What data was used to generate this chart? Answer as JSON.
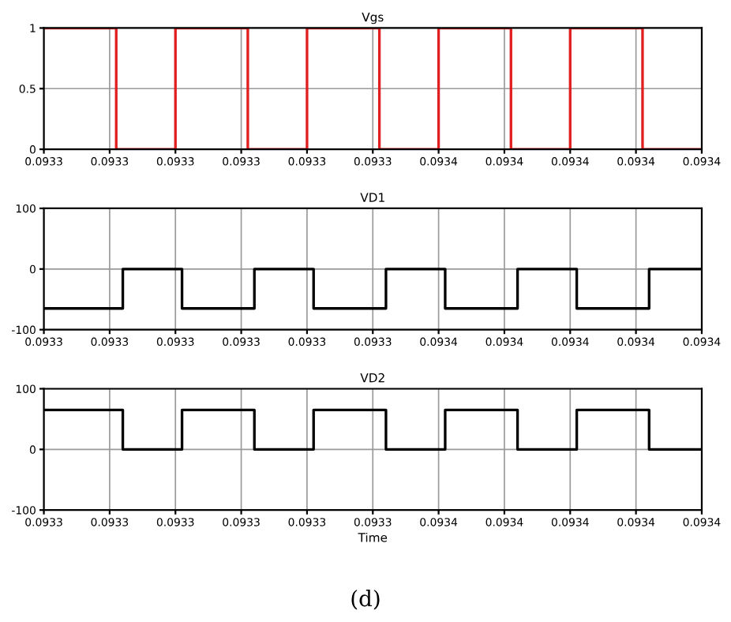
{
  "chart_data": [
    {
      "type": "step",
      "title": "Vgs",
      "x": [
        0.0933,
        0.093311,
        0.09332,
        0.093331,
        0.09334,
        0.093351,
        0.09336,
        0.093371,
        0.09338,
        0.093391,
        0.0934
      ],
      "series": [
        {
          "color": "#e02020",
          "values": [
            1,
            0,
            1,
            0,
            1,
            0,
            1,
            0,
            1,
            0,
            0
          ]
        }
      ],
      "xlim": [
        0.0933,
        0.0934
      ],
      "xticks": [
        {
          "value": 0.0933,
          "label": "0.0933"
        },
        {
          "value": 0.09331,
          "label": "0.0933"
        },
        {
          "value": 0.09332,
          "label": "0.0933"
        },
        {
          "value": 0.09333,
          "label": "0.0933"
        },
        {
          "value": 0.09334,
          "label": "0.0933"
        },
        {
          "value": 0.09335,
          "label": "0.0933"
        },
        {
          "value": 0.09336,
          "label": "0.0934"
        },
        {
          "value": 0.09337,
          "label": "0.0934"
        },
        {
          "value": 0.09338,
          "label": "0.0934"
        },
        {
          "value": 0.09339,
          "label": "0.0934"
        },
        {
          "value": 0.0934,
          "label": "0.0934"
        }
      ],
      "ylim": [
        0,
        1
      ],
      "yticks": [
        0,
        0.5,
        1
      ],
      "grid": true
    },
    {
      "type": "step",
      "title": "VD1",
      "x": [
        0.0933,
        0.093312,
        0.093321,
        0.093332,
        0.093341,
        0.093352,
        0.093361,
        0.093372,
        0.093381,
        0.093392,
        0.0934
      ],
      "series": [
        {
          "color": "#000000",
          "values": [
            -65,
            0,
            -65,
            0,
            -65,
            0,
            -65,
            0,
            -65,
            0,
            0
          ]
        }
      ],
      "xlim": [
        0.0933,
        0.0934
      ],
      "xticks": [
        {
          "value": 0.0933,
          "label": "0.0933"
        },
        {
          "value": 0.09331,
          "label": "0.0933"
        },
        {
          "value": 0.09332,
          "label": "0.0933"
        },
        {
          "value": 0.09333,
          "label": "0.0933"
        },
        {
          "value": 0.09334,
          "label": "0.0933"
        },
        {
          "value": 0.09335,
          "label": "0.0933"
        },
        {
          "value": 0.09336,
          "label": "0.0934"
        },
        {
          "value": 0.09337,
          "label": "0.0934"
        },
        {
          "value": 0.09338,
          "label": "0.0934"
        },
        {
          "value": 0.09339,
          "label": "0.0934"
        },
        {
          "value": 0.0934,
          "label": "0.0934"
        }
      ],
      "ylim": [
        -100,
        100
      ],
      "yticks": [
        -100,
        0,
        100
      ],
      "grid": true
    },
    {
      "type": "step",
      "title": "VD2",
      "xlabel": "Time",
      "annotations": [
        "(d)"
      ],
      "x": [
        0.0933,
        0.093312,
        0.093321,
        0.093332,
        0.093341,
        0.093352,
        0.093361,
        0.093372,
        0.093381,
        0.093392,
        0.0934
      ],
      "series": [
        {
          "color": "#000000",
          "values": [
            65,
            0,
            65,
            0,
            65,
            0,
            65,
            0,
            65,
            0,
            0
          ]
        }
      ],
      "xlim": [
        0.0933,
        0.0934
      ],
      "xticks": [
        {
          "value": 0.0933,
          "label": "0.0933"
        },
        {
          "value": 0.09331,
          "label": "0.0933"
        },
        {
          "value": 0.09332,
          "label": "0.0933"
        },
        {
          "value": 0.09333,
          "label": "0.0933"
        },
        {
          "value": 0.09334,
          "label": "0.0933"
        },
        {
          "value": 0.09335,
          "label": "0.0933"
        },
        {
          "value": 0.09336,
          "label": "0.0934"
        },
        {
          "value": 0.09337,
          "label": "0.0934"
        },
        {
          "value": 0.09338,
          "label": "0.0934"
        },
        {
          "value": 0.09339,
          "label": "0.0934"
        },
        {
          "value": 0.0934,
          "label": "0.0934"
        }
      ],
      "ylim": [
        -100,
        100
      ],
      "yticks": [
        -100,
        0,
        100
      ],
      "grid": true
    }
  ]
}
